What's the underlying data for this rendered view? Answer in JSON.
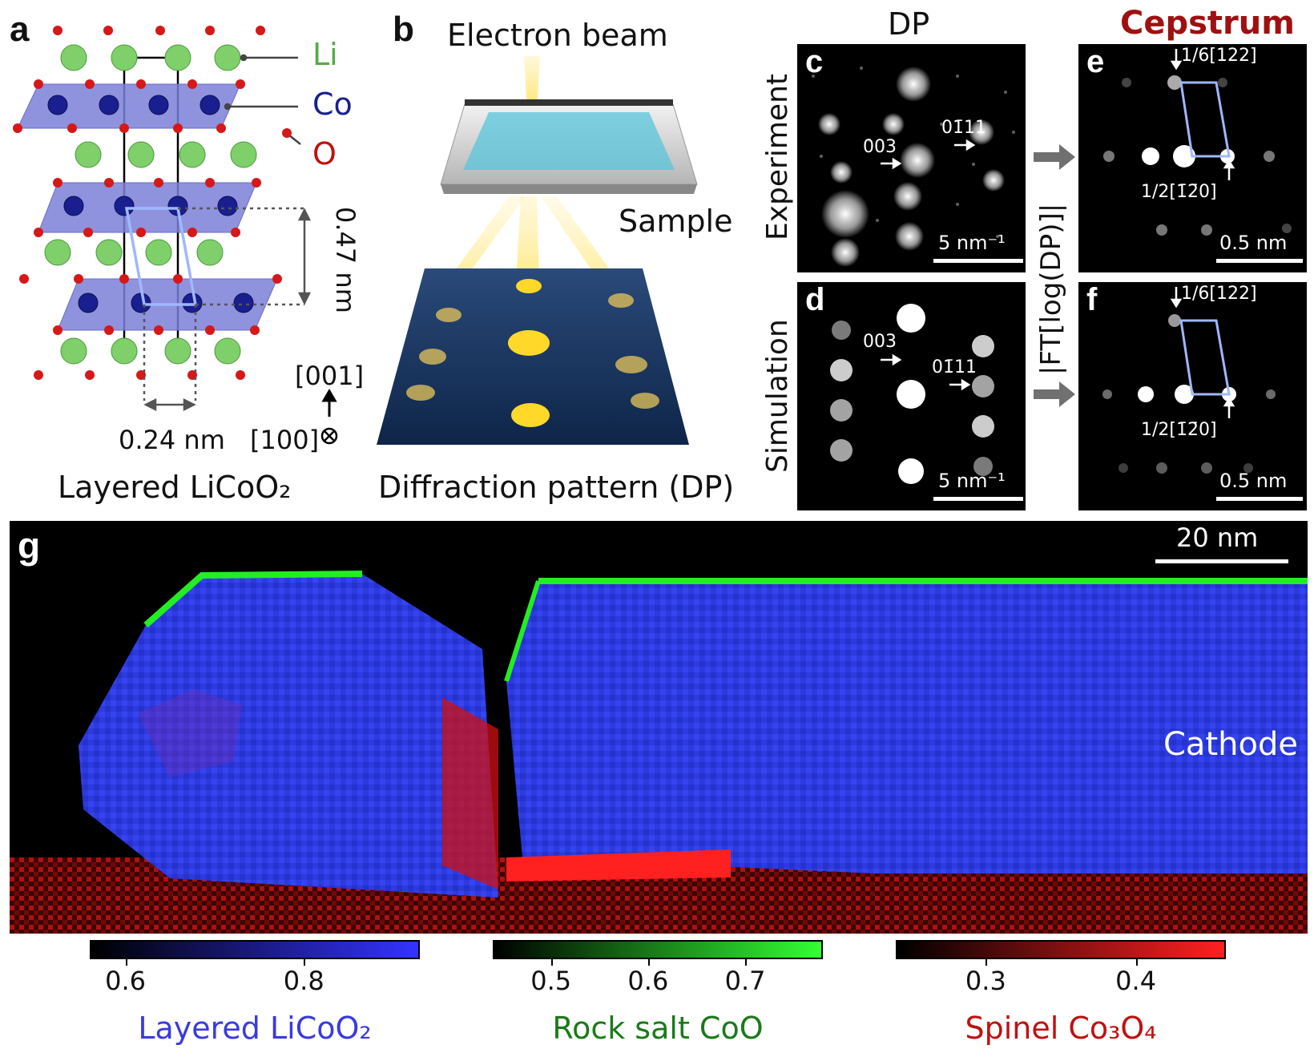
{
  "panels": {
    "a": {
      "label": "a",
      "legend": {
        "li": "Li",
        "co": "Co",
        "o": "O"
      },
      "dim_vertical": "0.47 nm",
      "dim_horizontal": "0.24 nm",
      "axis_001": "[001]",
      "axis_100": "[100]",
      "caption": "Layered LiCoO₂",
      "colors": {
        "li": "#7fcf6a",
        "co": "#1a1f8f",
        "o": "#d61818",
        "layer": "#7b7fd6",
        "cell": "#9fb7ff"
      }
    },
    "b": {
      "label": "b",
      "electron_beam": "Electron beam",
      "sample": "Sample",
      "caption": "Diffraction pattern (DP)"
    },
    "c": {
      "label": "c",
      "row_label": "Experiment",
      "col_title": "DP",
      "spot1": "003",
      "spot2": "01̄11",
      "scale": "5 nm⁻¹"
    },
    "d": {
      "label": "d",
      "row_label": "Simulation",
      "spot1": "003",
      "spot2": "01̄11",
      "scale": "5 nm⁻¹"
    },
    "e": {
      "label": "e",
      "col_title": "Cepstrum",
      "vec1": "1/6[122]",
      "vec2": "1/2[1̄2̄0]",
      "scale": "0.5 nm"
    },
    "f": {
      "label": "f",
      "vec1": "1/6[122]",
      "vec2": "1/2[1̄2̄0]",
      "scale": "0.5 nm"
    },
    "transform_label": "|FT[log(DP)]|",
    "g": {
      "label": "g",
      "scale": "20 nm",
      "region": "Cathode",
      "colorbars": [
        {
          "title": "Layered LiCoO₂",
          "title_color": "#3a3adf",
          "ticks": [
            "0.6",
            "0.8"
          ],
          "tick_values": [
            0.6,
            0.8
          ],
          "range": [
            0.56,
            0.93
          ],
          "color_from": "#000000",
          "color_to": "#3333ff"
        },
        {
          "title": "Rock salt CoO",
          "title_color": "#1a7a1a",
          "ticks": [
            "0.5",
            "0.6",
            "0.7"
          ],
          "tick_values": [
            0.5,
            0.6,
            0.7
          ],
          "range": [
            0.44,
            0.78
          ],
          "color_from": "#000000",
          "color_to": "#33ff33"
        },
        {
          "title": "Spinel Co₃O₄",
          "title_color": "#c01010",
          "ticks": [
            "0.3",
            "0.4"
          ],
          "tick_values": [
            0.3,
            0.4
          ],
          "range": [
            0.24,
            0.46
          ],
          "color_from": "#000000",
          "color_to": "#ff2020"
        }
      ]
    }
  }
}
